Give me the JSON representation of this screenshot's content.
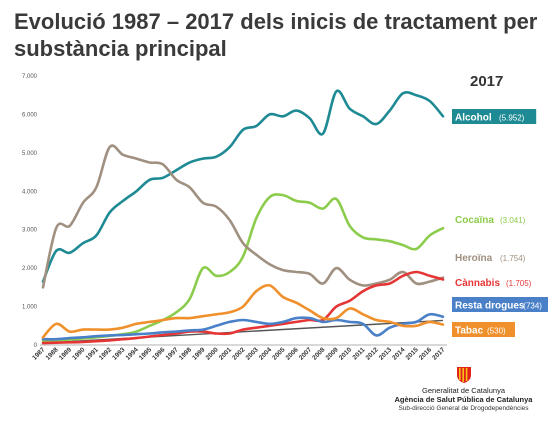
{
  "page": {
    "title": "Evolució 1987 – 2017 dels inicis de tractament per substància principal"
  },
  "chart_data": {
    "type": "line",
    "title": "Evolució 1987 – 2017 dels inicis de tractament per substància principal",
    "xlabel": "",
    "ylabel": "",
    "x": [
      "1987",
      "1988",
      "1989",
      "1990",
      "1991",
      "1992",
      "1993",
      "1994",
      "1995",
      "1996",
      "1997",
      "1998",
      "1999",
      "2000",
      "2001",
      "2002",
      "2003",
      "2004",
      "2005",
      "2006",
      "2007",
      "2008",
      "2009",
      "2010",
      "2011",
      "2012",
      "2013",
      "2014",
      "2015",
      "2016",
      "2017"
    ],
    "ylim": [
      0,
      7000
    ],
    "yticks": [
      "0",
      "1.000",
      "2.000",
      "3.000",
      "4.000",
      "5.000",
      "6.000",
      "7.000"
    ],
    "grid": false,
    "legend": "labels at right of lines",
    "year_label": "2017",
    "series": [
      {
        "name": "Alcohol",
        "label_value": "(5.952)",
        "color": "#1e8a94",
        "label_style": "box",
        "values": [
          1650,
          2450,
          2400,
          2650,
          2850,
          3450,
          3750,
          4000,
          4300,
          4350,
          4550,
          4750,
          4850,
          4900,
          5150,
          5600,
          5700,
          6000,
          5950,
          6100,
          5900,
          5500,
          6600,
          6150,
          5950,
          5750,
          6100,
          6550,
          6500,
          6350,
          5952
        ]
      },
      {
        "name": "Cocaïna",
        "label_value": "(3.041)",
        "color": "#8ccc4c",
        "label_style": "plain",
        "values": [
          100,
          120,
          140,
          170,
          200,
          240,
          280,
          350,
          500,
          650,
          850,
          1200,
          2000,
          1800,
          1900,
          2300,
          3300,
          3850,
          3900,
          3750,
          3700,
          3550,
          3800,
          3100,
          2800,
          2750,
          2700,
          2600,
          2500,
          2850,
          3041
        ]
      },
      {
        "name": "Heroïna",
        "label_value": "(1.754)",
        "color": "#a09080",
        "label_style": "plain",
        "values": [
          1500,
          3050,
          3100,
          3700,
          4100,
          5150,
          4950,
          4850,
          4750,
          4700,
          4300,
          4100,
          3700,
          3600,
          3250,
          2650,
          2350,
          2100,
          1950,
          1900,
          1850,
          1600,
          2000,
          1700,
          1550,
          1600,
          1700,
          1900,
          1600,
          1650,
          1754
        ]
      },
      {
        "name": "Cànnabis",
        "label_value": "(1.705)",
        "color": "#e53535",
        "label_style": "plain",
        "values": [
          50,
          60,
          70,
          80,
          100,
          120,
          150,
          180,
          220,
          260,
          300,
          350,
          350,
          300,
          300,
          400,
          450,
          500,
          550,
          600,
          650,
          650,
          1000,
          1150,
          1400,
          1550,
          1600,
          1800,
          1900,
          1800,
          1705
        ]
      },
      {
        "name": "Resta drogues",
        "label_value": "(734)",
        "color": "#4a80c8",
        "label_style": "box",
        "values": [
          150,
          150,
          180,
          200,
          230,
          250,
          260,
          280,
          300,
          330,
          350,
          380,
          400,
          500,
          600,
          650,
          600,
          550,
          600,
          700,
          700,
          600,
          650,
          600,
          550,
          250,
          450,
          550,
          600,
          800,
          734
        ]
      },
      {
        "name": "Tabac",
        "label_value": "(530)",
        "color": "#f0902c",
        "label_style": "box",
        "values": [
          200,
          550,
          350,
          400,
          400,
          400,
          450,
          550,
          600,
          650,
          700,
          700,
          750,
          800,
          850,
          1000,
          1400,
          1550,
          1250,
          1100,
          900,
          700,
          700,
          950,
          800,
          650,
          600,
          500,
          500,
          600,
          530
        ]
      },
      {
        "name": "",
        "label_value": "",
        "color": "#555555",
        "label_style": "none",
        "trendline": true,
        "values": [
          50,
          70,
          100,
          120,
          140,
          160,
          180,
          200,
          220,
          240,
          260,
          280,
          300,
          320,
          340,
          360,
          380,
          400,
          420,
          440,
          460,
          480,
          500,
          520,
          540,
          560,
          580,
          600,
          620,
          630,
          640
        ]
      }
    ]
  },
  "logo": {
    "line1": "Generalitat de Catalunya",
    "line2": "Agència de Salut Pública de Catalunya",
    "line3": "Sub-direcció General de Drogodependències"
  }
}
